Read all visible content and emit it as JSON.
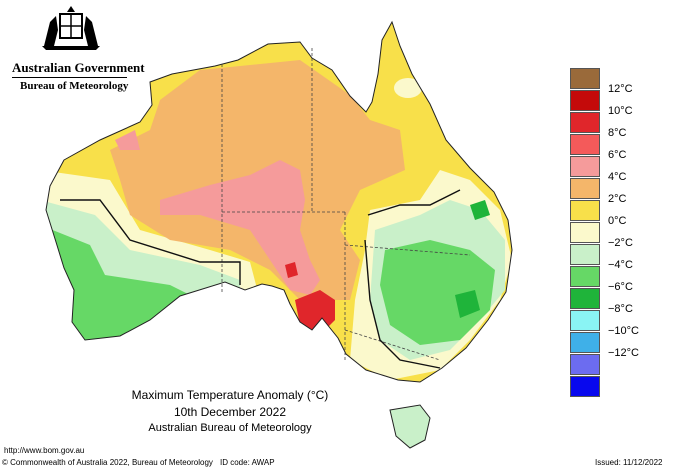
{
  "branding": {
    "government": "Australian Government",
    "bureau": "Bureau of Meteorology"
  },
  "title": {
    "line1": "Maximum Temperature Anomaly (°C)",
    "line2": "10th December 2022",
    "line3": "Australian Bureau of Meteorology"
  },
  "legend": [
    {
      "label": "",
      "color": "#9a6a3a"
    },
    {
      "label": "12°C",
      "color": "#c40a0a"
    },
    {
      "label": "10°C",
      "color": "#e0262b"
    },
    {
      "label": "8°C",
      "color": "#f45a5a"
    },
    {
      "label": "6°C",
      "color": "#f59b9b"
    },
    {
      "label": "4°C",
      "color": "#f4b66a"
    },
    {
      "label": "2°C",
      "color": "#f8e04a"
    },
    {
      "label": "0°C",
      "color": "#fbf9cc"
    },
    {
      "label": "−2°C",
      "color": "#c9f0c9"
    },
    {
      "label": "−4°C",
      "color": "#66d866"
    },
    {
      "label": "−6°C",
      "color": "#1fb43a"
    },
    {
      "label": "−8°C",
      "color": "#8af4f4"
    },
    {
      "label": "−10°C",
      "color": "#3fb0e8"
    },
    {
      "label": "−12°C",
      "color": "#6c6cf0"
    },
    {
      "label": "",
      "color": "#0808ee"
    }
  ],
  "footer": {
    "url": "http://www.bom.gov.au",
    "copyright": "© Commonwealth of Australia 2022, Bureau of Meteorology",
    "id_code": "ID code: AWAP",
    "issued": "Issued: 11/12/2022"
  }
}
